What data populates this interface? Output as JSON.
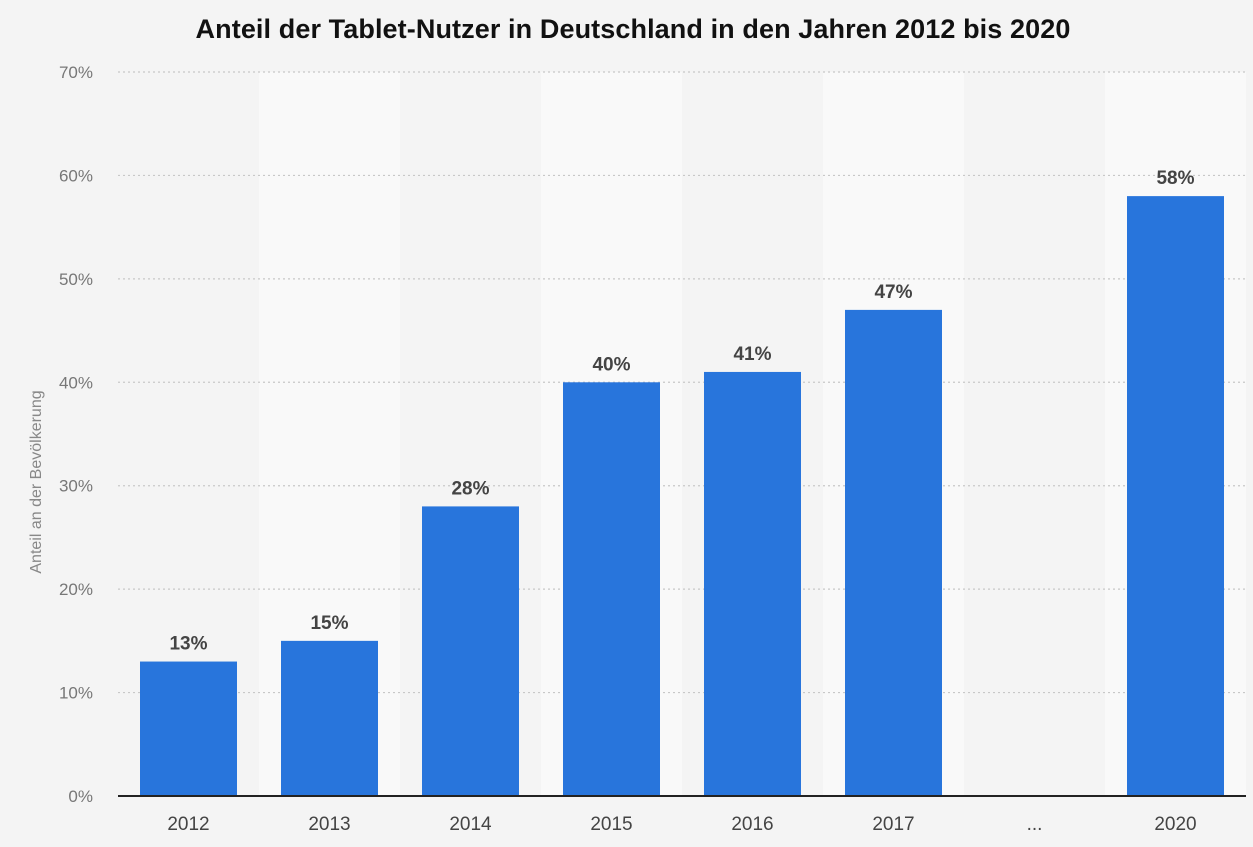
{
  "chart_data": {
    "type": "bar",
    "title": "Anteil der Tablet-Nutzer in Deutschland in den Jahren 2012 bis 2020",
    "xlabel": "",
    "ylabel": "Anteil an der Bevölkerung",
    "categories": [
      "2012",
      "2013",
      "2014",
      "2015",
      "2016",
      "2017",
      "...",
      "2020"
    ],
    "values": [
      13,
      15,
      28,
      40,
      41,
      47,
      null,
      58
    ],
    "data_labels": [
      "13%",
      "15%",
      "28%",
      "40%",
      "41%",
      "47%",
      "",
      "58%"
    ],
    "ylim": [
      0,
      70
    ],
    "yticks": [
      0,
      10,
      20,
      30,
      40,
      50,
      60,
      70
    ],
    "ytick_labels": [
      "0%",
      "10%",
      "20%",
      "30%",
      "40%",
      "50%",
      "60%",
      "70%"
    ],
    "grid": true,
    "legend": "none"
  },
  "colors": {
    "bar": "#2875dc",
    "background": "#f4f4f4",
    "band_alt": "#f9f9f9",
    "gridline": "#c8c8c8",
    "axis": "#222222"
  }
}
